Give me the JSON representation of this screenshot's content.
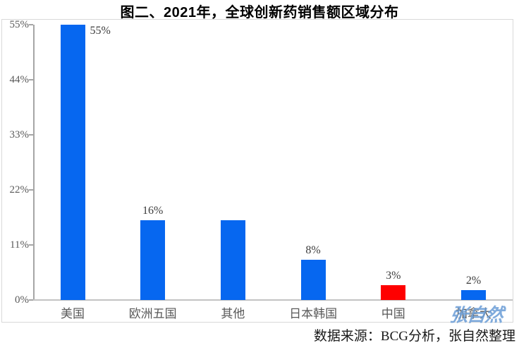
{
  "title": "图二、2021年，全球创新药销售额区域分布",
  "source_note": "数据来源：BCG分析，张自然整理",
  "watermark": "张自然",
  "colors": {
    "bar_blue": "#0667f0",
    "bar_red": "#fe0000",
    "axis_line": "#a6a6a6",
    "baseline": "#c3c3c3",
    "frame_border": "#d9d9d9",
    "tick_label": "#595959",
    "data_label": "#3d3d3d",
    "category_label": "#595959",
    "watermark_blue": "#6a9cd6",
    "title_color": "#000000"
  },
  "chart_data": {
    "type": "bar",
    "title": "图二、2021年，全球创新药销售额区域分布",
    "categories": [
      "美国",
      "欧洲五国",
      "其他",
      "日本韩国",
      "中国",
      "加拿大"
    ],
    "values": [
      55,
      16,
      16,
      8,
      3,
      2
    ],
    "data_labels": [
      "55%",
      "16%",
      "",
      "8%",
      "3%",
      "2%"
    ],
    "bar_colors": [
      "blue",
      "blue",
      "blue",
      "blue",
      "red",
      "blue"
    ],
    "y_ticks": [
      {
        "value": 0,
        "label": "0%"
      },
      {
        "value": 11,
        "label": "11%"
      },
      {
        "value": 22,
        "label": "22%"
      },
      {
        "value": 33,
        "label": "33%"
      },
      {
        "value": 44,
        "label": "44%"
      },
      {
        "value": 55,
        "label": "55%"
      }
    ],
    "ylim": [
      0,
      55
    ],
    "xlabel": "",
    "ylabel": "",
    "grid": false,
    "legend": null,
    "note": "bar for 其他 has no visible data label in source image"
  }
}
